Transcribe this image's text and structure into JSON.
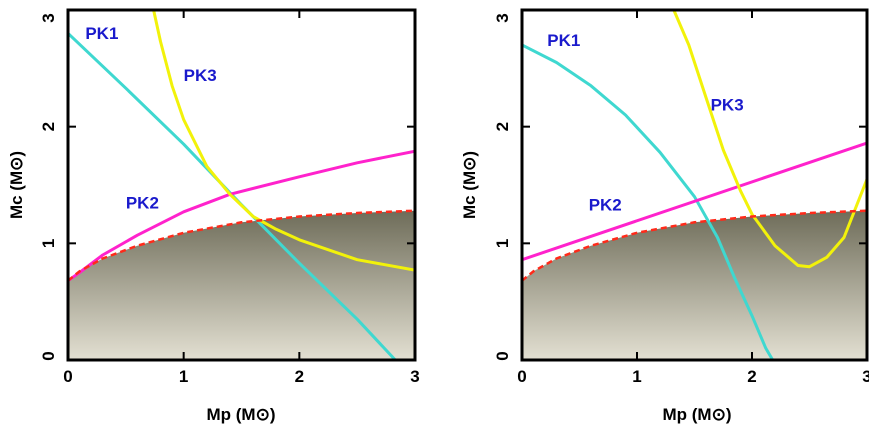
{
  "chart_data": [
    {
      "type": "line",
      "title": "",
      "xlabel": "Mp (M⊙)",
      "ylabel": "Mc (M⊙)",
      "xlim": [
        0,
        3
      ],
      "ylim": [
        0,
        3
      ],
      "xticks": [
        "0",
        "1",
        "2",
        "3"
      ],
      "yticks": [
        "0",
        "1",
        "2",
        "3"
      ],
      "excluded_region": {
        "label": "",
        "boundary": [
          [
            0,
            0.68
          ],
          [
            0.1,
            0.76
          ],
          [
            0.3,
            0.87
          ],
          [
            0.6,
            0.98
          ],
          [
            1.0,
            1.09
          ],
          [
            1.5,
            1.18
          ],
          [
            2.0,
            1.23
          ],
          [
            2.5,
            1.26
          ],
          [
            3.0,
            1.28
          ]
        ]
      },
      "series": [
        {
          "name": "PK1",
          "color": "#3fd8d0",
          "points": [
            [
              0,
              2.8
            ],
            [
              0.5,
              2.33
            ],
            [
              1.0,
              1.85
            ],
            [
              1.5,
              1.33
            ],
            [
              2.0,
              0.83
            ],
            [
              2.5,
              0.35
            ],
            [
              2.83,
              0
            ]
          ]
        },
        {
          "name": "PK2",
          "color": "#ff22cc",
          "points": [
            [
              0,
              0.68
            ],
            [
              0.1,
              0.75
            ],
            [
              0.3,
              0.9
            ],
            [
              0.6,
              1.07
            ],
            [
              1.0,
              1.27
            ],
            [
              1.4,
              1.42
            ],
            [
              2.0,
              1.57
            ],
            [
              2.5,
              1.69
            ],
            [
              3.0,
              1.79
            ]
          ]
        },
        {
          "name": "PK3",
          "color": "#f2f20a",
          "points": [
            [
              0.74,
              3.0
            ],
            [
              0.8,
              2.73
            ],
            [
              0.9,
              2.35
            ],
            [
              1.0,
              2.06
            ],
            [
              1.2,
              1.66
            ],
            [
              1.4,
              1.42
            ],
            [
              1.6,
              1.23
            ],
            [
              1.8,
              1.12
            ],
            [
              2.0,
              1.03
            ],
            [
              2.5,
              0.86
            ],
            [
              3.0,
              0.77
            ]
          ]
        }
      ],
      "labels": [
        {
          "text": "PK1",
          "x": 0.15,
          "y": 2.75
        },
        {
          "text": "PK3",
          "x": 1.0,
          "y": 2.39
        },
        {
          "text": "PK2",
          "x": 0.5,
          "y": 1.3
        }
      ]
    },
    {
      "type": "line",
      "title": "",
      "xlabel": "Mp (M⊙)",
      "ylabel": "Mc (M⊙)",
      "xlim": [
        0,
        3
      ],
      "ylim": [
        0,
        3
      ],
      "xticks": [
        "0",
        "1",
        "2",
        "3"
      ],
      "yticks": [
        "0",
        "1",
        "2",
        "3"
      ],
      "excluded_region": {
        "label": "",
        "boundary": [
          [
            0,
            0.68
          ],
          [
            0.1,
            0.76
          ],
          [
            0.3,
            0.87
          ],
          [
            0.6,
            0.98
          ],
          [
            1.0,
            1.09
          ],
          [
            1.5,
            1.18
          ],
          [
            2.0,
            1.23
          ],
          [
            2.5,
            1.26
          ],
          [
            3.0,
            1.28
          ]
        ]
      },
      "series": [
        {
          "name": "PK1",
          "color": "#3fd8d0",
          "points": [
            [
              0,
              2.7
            ],
            [
              0.3,
              2.55
            ],
            [
              0.6,
              2.35
            ],
            [
              0.9,
              2.1
            ],
            [
              1.2,
              1.78
            ],
            [
              1.5,
              1.4
            ],
            [
              1.7,
              1.05
            ],
            [
              1.85,
              0.7
            ],
            [
              2.0,
              0.38
            ],
            [
              2.12,
              0.1
            ],
            [
              2.18,
              0
            ]
          ]
        },
        {
          "name": "PK2",
          "color": "#ff22cc",
          "points": [
            [
              0,
              0.86
            ],
            [
              3.0,
              1.86
            ]
          ]
        },
        {
          "name": "PK3",
          "color": "#f2f20a",
          "points": [
            [
              1.32,
              3.0
            ],
            [
              1.45,
              2.7
            ],
            [
              1.6,
              2.25
            ],
            [
              1.75,
              1.8
            ],
            [
              1.9,
              1.45
            ],
            [
              2.0,
              1.25
            ],
            [
              2.2,
              0.98
            ],
            [
              2.4,
              0.81
            ],
            [
              2.5,
              0.8
            ],
            [
              2.65,
              0.88
            ],
            [
              2.8,
              1.05
            ],
            [
              2.9,
              1.3
            ],
            [
              3.0,
              1.55
            ]
          ]
        }
      ],
      "labels": [
        {
          "text": "PK1",
          "x": 0.22,
          "y": 2.69
        },
        {
          "text": "PK3",
          "x": 1.64,
          "y": 2.14
        },
        {
          "text": "PK2",
          "x": 0.58,
          "y": 1.28
        }
      ]
    }
  ],
  "colors": {
    "background": "#ffffff",
    "axis": "#000000",
    "region_top": "#6e6c59",
    "region_bottom": "#e3e0d2",
    "boundary_dash": "#ff2a1a",
    "curve_label": "#1a1acc"
  }
}
